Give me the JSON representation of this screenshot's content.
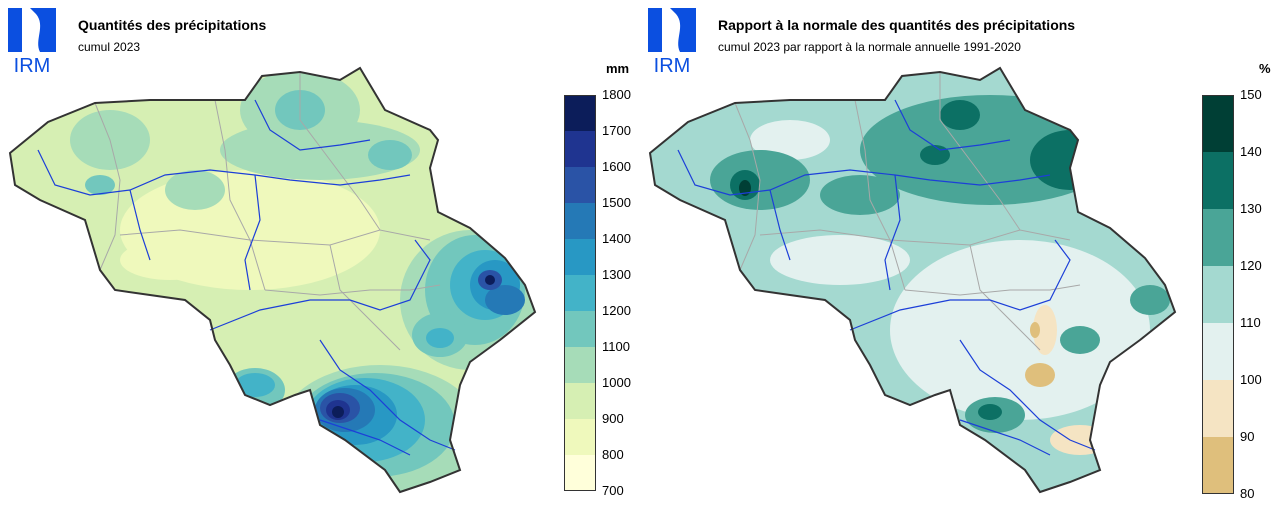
{
  "logo": {
    "text": "IRM",
    "color": "#0b4fe0"
  },
  "left_panel": {
    "title": "Quantités des précipitations",
    "subtitle": "cumul 2023",
    "unit": "mm",
    "legend_ticks": [
      "1800",
      "1700",
      "1600",
      "1500",
      "1400",
      "1300",
      "1200",
      "1100",
      "1000",
      "900",
      "800",
      "700"
    ],
    "legend_colors": [
      "#0c1d5a",
      "#1f3490",
      "#2a53a6",
      "#2579b6",
      "#2898c4",
      "#43b3c8",
      "#72c7bd",
      "#a6dcb8",
      "#d6efb3",
      "#eff9bc",
      "#ffffda"
    ]
  },
  "right_panel": {
    "title": "Rapport à la normale des quantités des précipitations",
    "subtitle": "cumul 2023 par rapport à la normale annuelle 1991-2020",
    "unit": "%",
    "legend_ticks": [
      "150",
      "140",
      "130",
      "120",
      "110",
      "100",
      "90",
      "80"
    ],
    "legend_colors": [
      "#003f35",
      "#0c7064",
      "#4aa597",
      "#a4d9d0",
      "#e3f1ef",
      "#f5e4c3",
      "#dfbf7c"
    ]
  },
  "map_colors": {
    "border": "#333333",
    "river": "#1c3fd8",
    "boundary": "#a8a8a8"
  }
}
